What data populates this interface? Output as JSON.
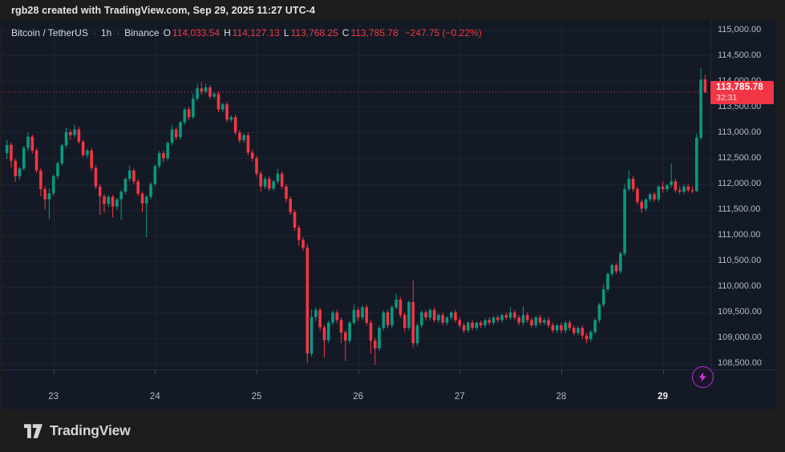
{
  "header": {
    "text": "rgb28 created with TradingView.com, Sep 29, 2025 11:27 UTC-4"
  },
  "legend": {
    "symbol": "Bitcoin / TetherUS",
    "separator": "·",
    "interval": "1h",
    "exchange": "Binance",
    "o_label": "O",
    "o": "114,033.54",
    "h_label": "H",
    "h": "114,127.13",
    "l_label": "L",
    "l": "113,768.25",
    "c_label": "C",
    "c": "113,785.78",
    "change": "−247.75 (−0.22%)"
  },
  "price_scale": {
    "ticks": [
      {
        "value": 115000,
        "label": "115,000.00"
      },
      {
        "value": 114500,
        "label": "114,500.00"
      },
      {
        "value": 114000,
        "label": "114,000.00"
      },
      {
        "value": 113500,
        "label": "113,500.00"
      },
      {
        "value": 113000,
        "label": "113,000.00"
      },
      {
        "value": 112500,
        "label": "112,500.00"
      },
      {
        "value": 112000,
        "label": "112,000.00"
      },
      {
        "value": 111500,
        "label": "111,500.00"
      },
      {
        "value": 111000,
        "label": "111,000.00"
      },
      {
        "value": 110500,
        "label": "110,500.00"
      },
      {
        "value": 110000,
        "label": "110,000.00"
      },
      {
        "value": 109500,
        "label": "109,500.00"
      },
      {
        "value": 109000,
        "label": "109,000.00"
      },
      {
        "value": 108500,
        "label": "108,500.00"
      }
    ],
    "last": {
      "price": "113,785.78",
      "countdown": "32:31"
    }
  },
  "time_scale": {
    "labels": [
      {
        "text": "23",
        "index": 11,
        "strong": false
      },
      {
        "text": "24",
        "index": 35,
        "strong": false
      },
      {
        "text": "25",
        "index": 59,
        "strong": false
      },
      {
        "text": "26",
        "index": 83,
        "strong": false
      },
      {
        "text": "27",
        "index": 107,
        "strong": false
      },
      {
        "text": "28",
        "index": 131,
        "strong": false
      },
      {
        "text": "29",
        "index": 155,
        "strong": true
      }
    ]
  },
  "footer": {
    "brand": "TradingView"
  },
  "colors": {
    "outer_bg": "#1d1d1d",
    "chart_bg": "#141a25",
    "grid": "#1c2330",
    "separator": "#242b39",
    "axis_text": "#b4bac6",
    "up": "#089981",
    "down": "#f23645",
    "tag_bg": "#f23645",
    "icon_purple": "#bf2fd0"
  },
  "chart_data": {
    "type": "candlestick",
    "symbol": "Bitcoin / TetherUS",
    "interval": "1h",
    "exchange": "Binance",
    "title": "Bitcoin / TetherUS · 1h · Binance",
    "last_candle": {
      "open": 114033.54,
      "high": 114127.13,
      "low": 113768.25,
      "close": 113785.78,
      "change": -247.75,
      "change_pct": -0.22
    },
    "current_price": 113785.78,
    "price_axis": {
      "min": 108390,
      "max": 115190,
      "tick_step": 500,
      "grid": true
    },
    "x_axis_days": [
      "23",
      "24",
      "25",
      "26",
      "27",
      "28",
      "29"
    ],
    "candles": [
      [
        112600,
        112860,
        112490,
        112760
      ],
      [
        112760,
        112810,
        112310,
        112450
      ],
      [
        112450,
        112500,
        112040,
        112150
      ],
      [
        112150,
        112330,
        112080,
        112300
      ],
      [
        112300,
        112740,
        112260,
        112700
      ],
      [
        112700,
        113010,
        112640,
        112920
      ],
      [
        112920,
        112960,
        112590,
        112650
      ],
      [
        112650,
        112700,
        112210,
        112260
      ],
      [
        112260,
        112300,
        111760,
        111900
      ],
      [
        111900,
        111960,
        111510,
        111700
      ],
      [
        111700,
        111910,
        111310,
        111820
      ],
      [
        111820,
        112180,
        111770,
        112150
      ],
      [
        112150,
        112440,
        112100,
        112400
      ],
      [
        112400,
        112790,
        112360,
        112750
      ],
      [
        112750,
        113100,
        112700,
        113010
      ],
      [
        113010,
        113060,
        112860,
        112950
      ],
      [
        112950,
        113150,
        112900,
        113060
      ],
      [
        113060,
        113110,
        112780,
        112820
      ],
      [
        112820,
        112860,
        112520,
        112560
      ],
      [
        112560,
        112690,
        112500,
        112650
      ],
      [
        112650,
        112700,
        112260,
        112310
      ],
      [
        112310,
        112360,
        111900,
        111950
      ],
      [
        111950,
        112000,
        111400,
        111760
      ],
      [
        111760,
        111800,
        111440,
        111610
      ],
      [
        111610,
        111780,
        111550,
        111750
      ],
      [
        111750,
        111790,
        111350,
        111560
      ],
      [
        111560,
        111730,
        111500,
        111700
      ],
      [
        111700,
        111880,
        111300,
        111850
      ],
      [
        111850,
        112130,
        111800,
        112100
      ],
      [
        112100,
        112350,
        112050,
        112260
      ],
      [
        112260,
        112300,
        111990,
        112050
      ],
      [
        112050,
        112090,
        111760,
        111810
      ],
      [
        111810,
        111850,
        111450,
        111620
      ],
      [
        111620,
        111780,
        110960,
        111750
      ],
      [
        111750,
        112030,
        111700,
        112000
      ],
      [
        112000,
        112380,
        111950,
        112350
      ],
      [
        112350,
        112640,
        112300,
        112600
      ],
      [
        112600,
        112650,
        112420,
        112500
      ],
      [
        112500,
        112830,
        112450,
        112800
      ],
      [
        112800,
        113150,
        112750,
        113060
      ],
      [
        113060,
        113100,
        112850,
        112910
      ],
      [
        112910,
        113230,
        112860,
        113200
      ],
      [
        113200,
        113480,
        113150,
        113450
      ],
      [
        113450,
        113500,
        113240,
        113300
      ],
      [
        113300,
        113760,
        113260,
        113660
      ],
      [
        113660,
        113960,
        113610,
        113860
      ],
      [
        113860,
        113980,
        113740,
        113800
      ],
      [
        113800,
        113950,
        113760,
        113880
      ],
      [
        113880,
        113920,
        113650,
        113700
      ],
      [
        113700,
        113790,
        113660,
        113750
      ],
      [
        113750,
        113800,
        113400,
        113450
      ],
      [
        113450,
        113580,
        113400,
        113550
      ],
      [
        113550,
        113600,
        113200,
        113250
      ],
      [
        113250,
        113340,
        113200,
        113300
      ],
      [
        113300,
        113350,
        112950,
        113000
      ],
      [
        113000,
        113050,
        112800,
        112850
      ],
      [
        112850,
        112980,
        112800,
        112950
      ],
      [
        112950,
        113000,
        112560,
        112610
      ],
      [
        112610,
        112660,
        112440,
        112500
      ],
      [
        112500,
        112550,
        112140,
        112200
      ],
      [
        112200,
        112250,
        111850,
        111950
      ],
      [
        111950,
        112140,
        111900,
        112100
      ],
      [
        112100,
        112150,
        111860,
        111910
      ],
      [
        111910,
        112080,
        111860,
        112050
      ],
      [
        112050,
        112300,
        112000,
        112200
      ],
      [
        112200,
        112250,
        111900,
        111950
      ],
      [
        111950,
        112000,
        111650,
        111710
      ],
      [
        111710,
        111760,
        111400,
        111450
      ],
      [
        111450,
        111500,
        111090,
        111150
      ],
      [
        111150,
        111200,
        110800,
        110910
      ],
      [
        110910,
        110960,
        110700,
        110760
      ],
      [
        110760,
        110830,
        108520,
        108700
      ],
      [
        108700,
        109560,
        108640,
        109410
      ],
      [
        109410,
        109600,
        109330,
        109550
      ],
      [
        109550,
        109590,
        109140,
        109210
      ],
      [
        109210,
        109260,
        108630,
        108960
      ],
      [
        108960,
        109340,
        108900,
        109300
      ],
      [
        109300,
        109540,
        109250,
        109500
      ],
      [
        109500,
        109550,
        109290,
        109350
      ],
      [
        109350,
        109400,
        108900,
        109110
      ],
      [
        109110,
        109150,
        108560,
        108950
      ],
      [
        108950,
        109330,
        108900,
        109300
      ],
      [
        109300,
        109660,
        109260,
        109550
      ],
      [
        109550,
        109600,
        109330,
        109400
      ],
      [
        109400,
        109640,
        109350,
        109600
      ],
      [
        109600,
        109650,
        109240,
        109300
      ],
      [
        109300,
        109350,
        108700,
        108950
      ],
      [
        108950,
        109000,
        108480,
        108800
      ],
      [
        108800,
        109240,
        108750,
        109200
      ],
      [
        109200,
        109540,
        109150,
        109500
      ],
      [
        109500,
        109550,
        109190,
        109250
      ],
      [
        109250,
        109640,
        109200,
        109600
      ],
      [
        109600,
        109860,
        109560,
        109750
      ],
      [
        109750,
        109800,
        109400,
        109450
      ],
      [
        109450,
        109500,
        109130,
        109200
      ],
      [
        109200,
        109730,
        109150,
        109700
      ],
      [
        109700,
        110130,
        108820,
        108900
      ],
      [
        108900,
        109290,
        108850,
        109250
      ],
      [
        109250,
        109540,
        109200,
        109500
      ],
      [
        109500,
        109550,
        109340,
        109400
      ],
      [
        109400,
        109580,
        109350,
        109550
      ],
      [
        109550,
        109600,
        109300,
        109350
      ],
      [
        109350,
        109480,
        109300,
        109450
      ],
      [
        109450,
        109500,
        109250,
        109300
      ],
      [
        109300,
        109430,
        109250,
        109400
      ],
      [
        109400,
        109530,
        109350,
        109500
      ],
      [
        109500,
        109550,
        109300,
        109350
      ],
      [
        109350,
        109400,
        109200,
        109250
      ],
      [
        109250,
        109300,
        109100,
        109150
      ],
      [
        109150,
        109330,
        109100,
        109300
      ],
      [
        109300,
        109350,
        109150,
        109200
      ],
      [
        109200,
        109320,
        109150,
        109300
      ],
      [
        109300,
        109340,
        109200,
        109250
      ],
      [
        109250,
        109380,
        109200,
        109350
      ],
      [
        109350,
        109400,
        109250,
        109300
      ],
      [
        109300,
        109430,
        109250,
        109400
      ],
      [
        109400,
        109450,
        109300,
        109350
      ],
      [
        109350,
        109480,
        109300,
        109450
      ],
      [
        109450,
        109500,
        109350,
        109400
      ],
      [
        109400,
        109600,
        109350,
        109500
      ],
      [
        109500,
        109550,
        109350,
        109400
      ],
      [
        109400,
        109450,
        109250,
        109300
      ],
      [
        109300,
        109620,
        109250,
        109450
      ],
      [
        109450,
        109500,
        109300,
        109350
      ],
      [
        109350,
        109400,
        109200,
        109250
      ],
      [
        109250,
        109430,
        109200,
        109400
      ],
      [
        109400,
        109450,
        109250,
        109300
      ],
      [
        109300,
        109400,
        109250,
        109350
      ],
      [
        109350,
        109400,
        109200,
        109250
      ],
      [
        109250,
        109300,
        109100,
        109150
      ],
      [
        109150,
        109280,
        109100,
        109250
      ],
      [
        109250,
        109300,
        109100,
        109150
      ],
      [
        109150,
        109330,
        109100,
        109300
      ],
      [
        109300,
        109350,
        109150,
        109200
      ],
      [
        109200,
        109250,
        109050,
        109100
      ],
      [
        109100,
        109230,
        109050,
        109200
      ],
      [
        109200,
        109250,
        108980,
        109050
      ],
      [
        109050,
        109100,
        108900,
        108980
      ],
      [
        108980,
        109150,
        108930,
        109120
      ],
      [
        109120,
        109380,
        109070,
        109350
      ],
      [
        109350,
        109680,
        109300,
        109650
      ],
      [
        109650,
        110050,
        109600,
        109950
      ],
      [
        109950,
        110280,
        109900,
        110250
      ],
      [
        110250,
        110450,
        110200,
        110420
      ],
      [
        110420,
        110460,
        110250,
        110300
      ],
      [
        110300,
        110680,
        110250,
        110650
      ],
      [
        110650,
        112000,
        110600,
        111900
      ],
      [
        111900,
        112270,
        111850,
        112100
      ],
      [
        112100,
        112150,
        111850,
        111900
      ],
      [
        111900,
        111950,
        111600,
        111650
      ],
      [
        111650,
        111700,
        111430,
        111520
      ],
      [
        111520,
        111730,
        111470,
        111700
      ],
      [
        111700,
        111830,
        111650,
        111800
      ],
      [
        111800,
        111850,
        111650,
        111700
      ],
      [
        111700,
        111980,
        111650,
        111950
      ],
      [
        111950,
        112050,
        111830,
        111900
      ],
      [
        111900,
        112000,
        111850,
        111980
      ],
      [
        111980,
        112400,
        111930,
        112050
      ],
      [
        112050,
        112100,
        111830,
        111880
      ],
      [
        111880,
        111960,
        111800,
        111850
      ],
      [
        111850,
        111990,
        111800,
        111950
      ],
      [
        111950,
        112000,
        111840,
        111880
      ],
      [
        111880,
        111960,
        111820,
        111860
      ],
      [
        111860,
        112980,
        111840,
        112900
      ],
      [
        112900,
        114250,
        112850,
        114030
      ],
      [
        114033.54,
        114127.13,
        113768.25,
        113785.78
      ]
    ]
  }
}
